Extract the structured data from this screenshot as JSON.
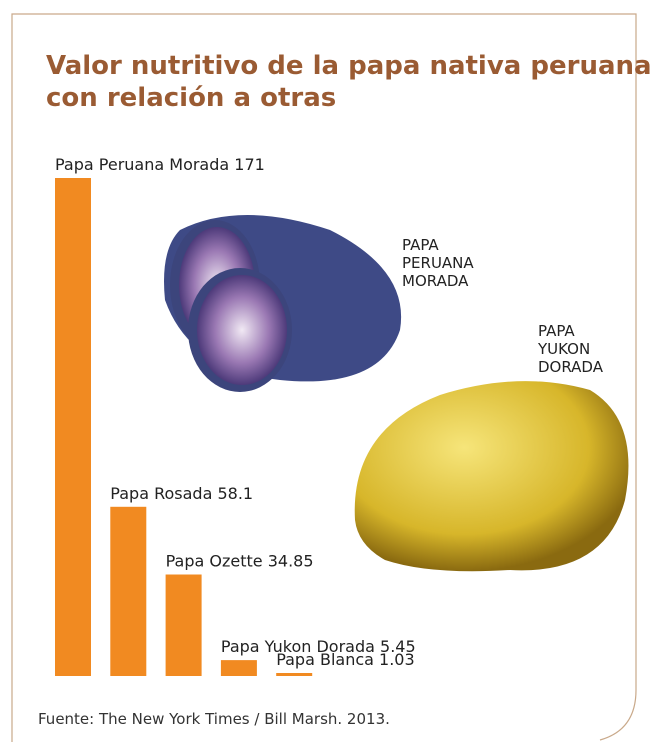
{
  "chart_data": {
    "type": "bar",
    "title": "Valor nutritivo de la papa nativa peruana con relación a otras",
    "categories": [
      "Papa Peruana Morada",
      "Papa Rosada",
      "Papa Ozette",
      "Papa Yukon Dorada",
      "Papa Blanca"
    ],
    "values": [
      171,
      58.1,
      34.85,
      5.45,
      1.03
    ],
    "color": "#f18a21",
    "annotations": [
      {
        "lines": [
          "PAPA",
          "PERUANA",
          "MORADA"
        ]
      },
      {
        "lines": [
          "PAPA",
          "YUKON",
          "DORADA"
        ]
      }
    ],
    "source": "Fuente: The New York Times / Bill Marsh. 2013."
  }
}
